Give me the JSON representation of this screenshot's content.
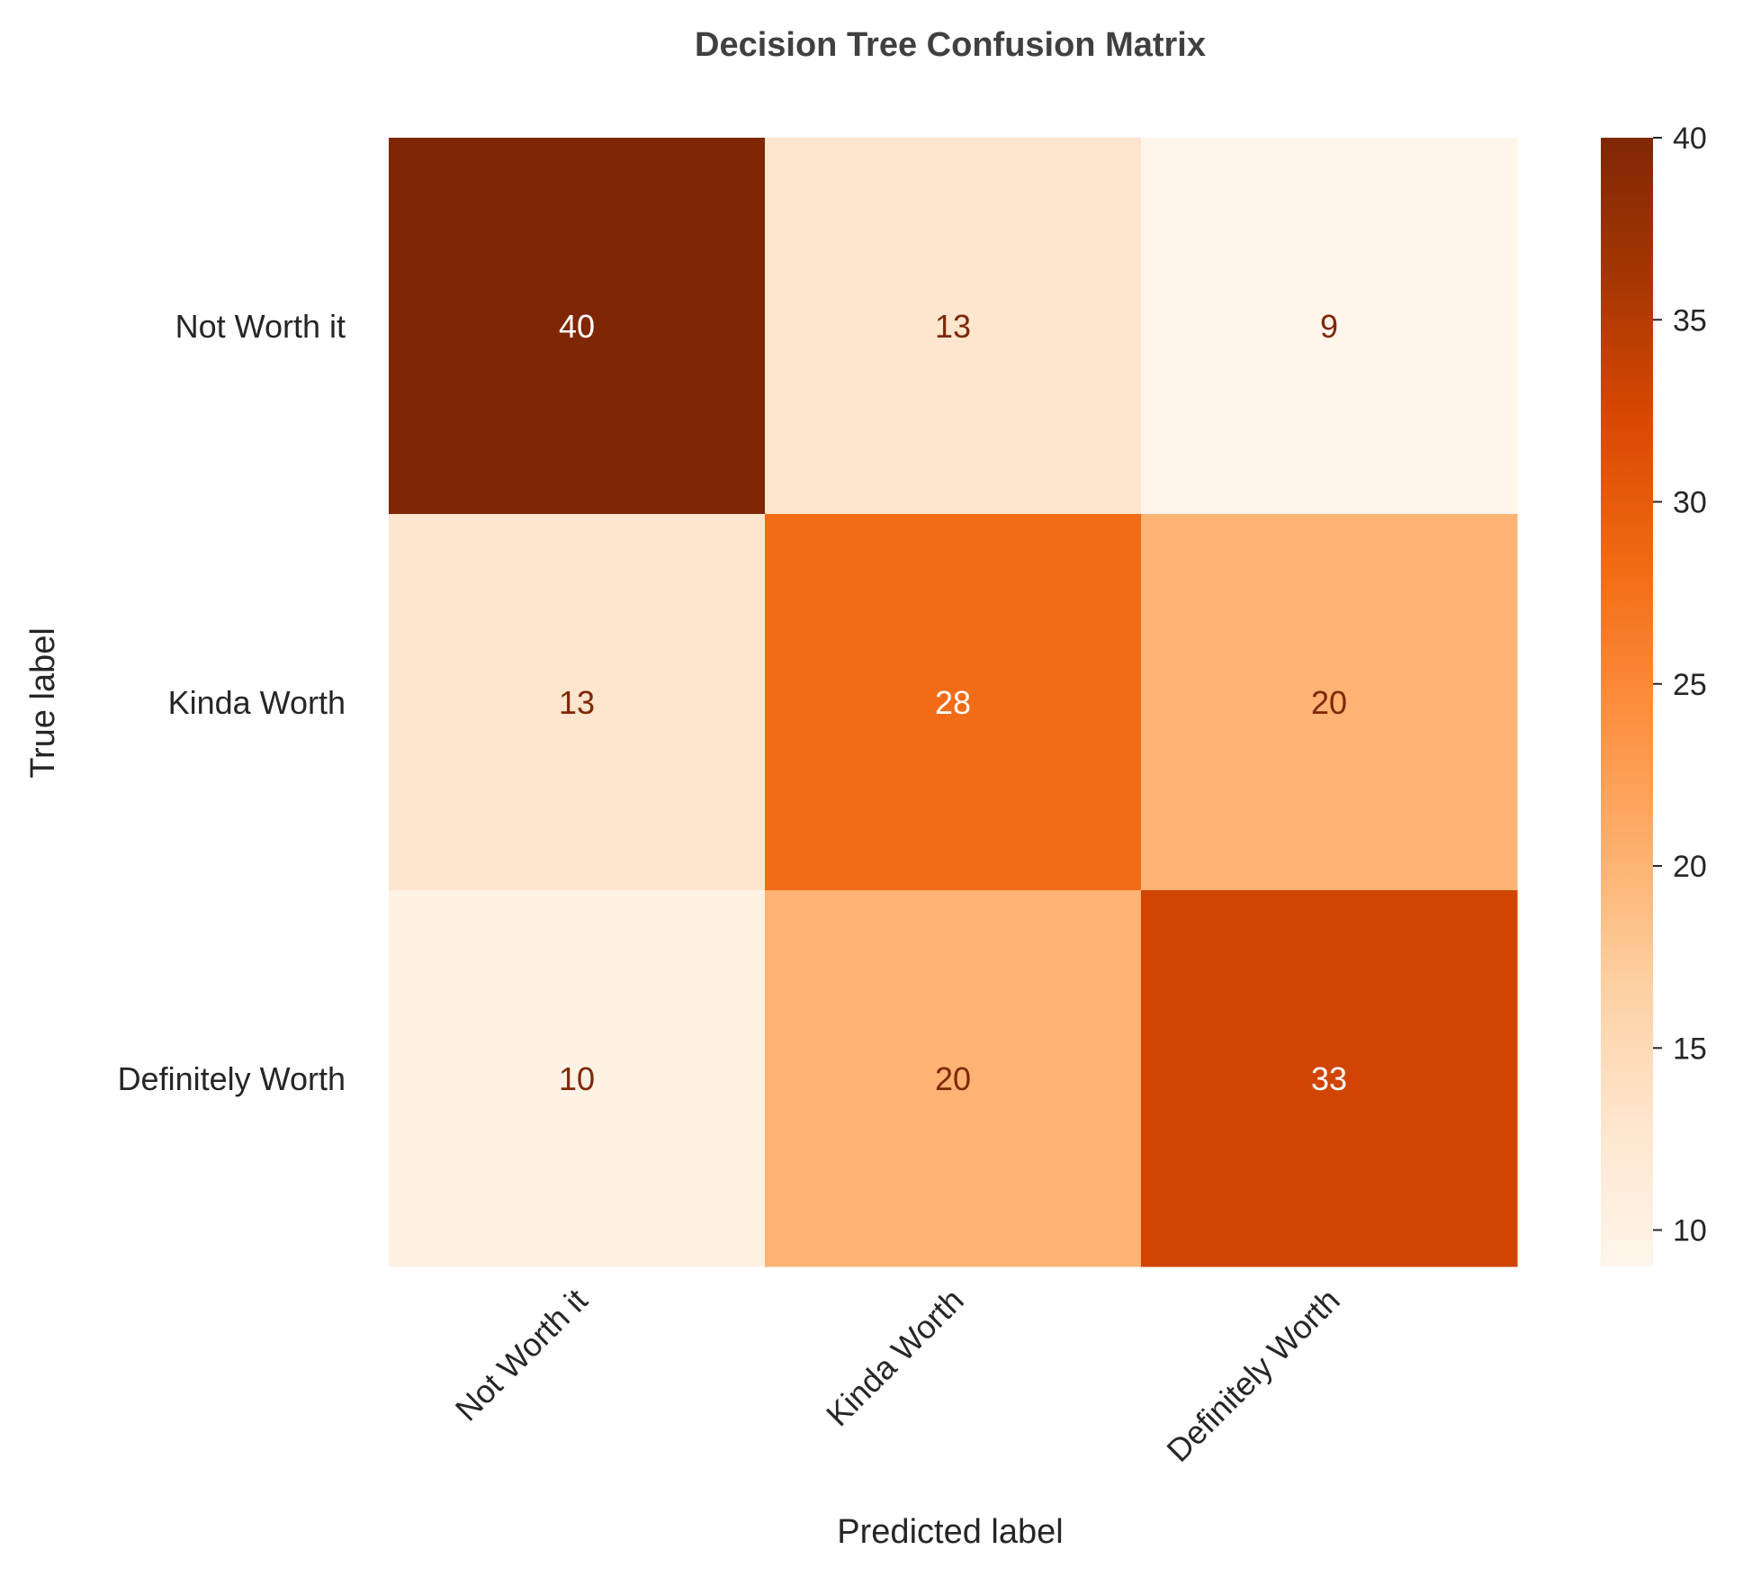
{
  "chart_data": {
    "type": "heatmap",
    "title": "Decision Tree Confusion Matrix",
    "xlabel": "Predicted label",
    "ylabel": "True label",
    "x_categories": [
      "Not Worth it",
      "Kinda Worth",
      "Definitely Worth"
    ],
    "y_categories": [
      "Not Worth it",
      "Kinda Worth",
      "Definitely Worth"
    ],
    "matrix": [
      [
        40,
        13,
        9
      ],
      [
        13,
        28,
        20
      ],
      [
        10,
        20,
        33
      ]
    ],
    "colormap": "Oranges",
    "colorbar": {
      "range": [
        9,
        40
      ],
      "ticks": [
        10,
        15,
        20,
        25,
        30,
        35,
        40
      ]
    },
    "grid": false
  }
}
